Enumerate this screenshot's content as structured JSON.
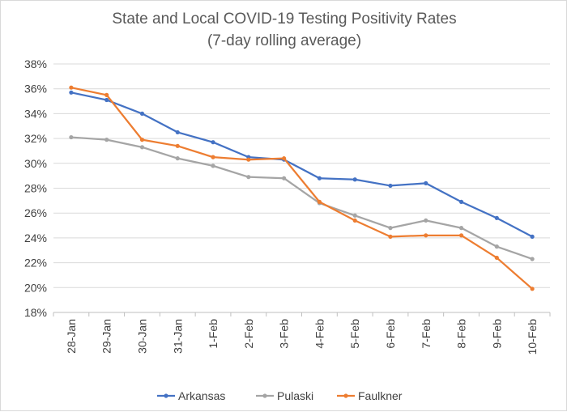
{
  "chart_data": {
    "type": "line",
    "title": [
      "State and Local COVID-19 Testing Positivity Rates",
      "(7-day rolling average)"
    ],
    "xlabel": "",
    "ylabel": "",
    "categories": [
      "28-Jan",
      "29-Jan",
      "30-Jan",
      "31-Jan",
      "1-Feb",
      "2-Feb",
      "3-Feb",
      "4-Feb",
      "5-Feb",
      "6-Feb",
      "7-Feb",
      "8-Feb",
      "9-Feb",
      "10-Feb"
    ],
    "ylim": [
      18,
      38
    ],
    "yticks": [
      18,
      20,
      22,
      24,
      26,
      28,
      30,
      32,
      34,
      36,
      38
    ],
    "ytick_labels": [
      "18%",
      "20%",
      "22%",
      "24%",
      "26%",
      "28%",
      "30%",
      "32%",
      "34%",
      "36%",
      "38%"
    ],
    "grid": true,
    "legend_position": "bottom",
    "series": [
      {
        "name": "Arkansas",
        "color": "#4472C4",
        "values": [
          35.7,
          35.1,
          34.0,
          32.5,
          31.7,
          30.5,
          30.3,
          28.8,
          28.7,
          28.2,
          28.4,
          26.9,
          25.6,
          24.1
        ]
      },
      {
        "name": "Pulaski",
        "color": "#A5A5A5",
        "values": [
          32.1,
          31.9,
          31.3,
          30.4,
          29.8,
          28.9,
          28.8,
          26.8,
          25.8,
          24.8,
          25.4,
          24.8,
          23.3,
          22.3
        ]
      },
      {
        "name": "Faulkner",
        "color": "#ED7D31",
        "values": [
          36.1,
          35.5,
          31.9,
          31.4,
          30.5,
          30.3,
          30.4,
          26.9,
          25.4,
          24.1,
          24.2,
          24.2,
          22.4,
          19.9
        ]
      }
    ]
  }
}
